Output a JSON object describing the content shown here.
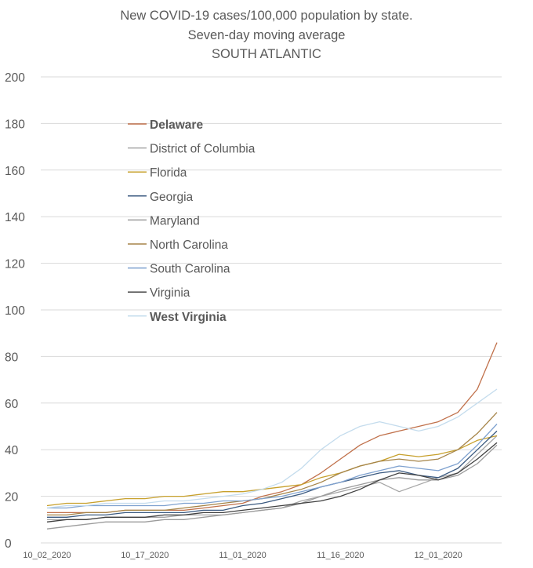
{
  "title_lines": [
    "New COVID-19 cases/100,000 population by state.",
    "Seven-day moving average",
    "SOUTH ATLANTIC"
  ],
  "chart_data": {
    "type": "line",
    "title": "New COVID-19 cases/100,000 population by state. Seven-day moving average SOUTH ATLANTIC",
    "xlabel": "",
    "ylabel": "",
    "ylim": [
      0,
      200
    ],
    "yticks": [
      0,
      20,
      40,
      60,
      80,
      100,
      120,
      140,
      160,
      180,
      200
    ],
    "x_tick_labels": [
      "10_02_2020",
      "10_17_2020",
      "11_01_2020",
      "11_16_2020",
      "12_01_2020"
    ],
    "x_tick_index": [
      0,
      15,
      30,
      45,
      60
    ],
    "grid": true,
    "legend_position": "upper-left-inside",
    "x": [
      "10_02",
      "10_05",
      "10_08",
      "10_11",
      "10_14",
      "10_17",
      "10_20",
      "10_23",
      "10_26",
      "10_29",
      "11_01",
      "11_04",
      "11_07",
      "11_10",
      "11_13",
      "11_16",
      "11_19",
      "11_22",
      "11_25",
      "11_28",
      "12_01",
      "12_04",
      "12_07",
      "12_10"
    ],
    "series": [
      {
        "name": "Delaware",
        "bold": true,
        "color": "#c0704a",
        "values": [
          13,
          13,
          13,
          13,
          14,
          14,
          14,
          14,
          15,
          16,
          17,
          20,
          22,
          25,
          30,
          36,
          42,
          46,
          48,
          50,
          52,
          56,
          66,
          86
        ]
      },
      {
        "name": "District of Columbia",
        "bold": false,
        "color": "#a6a6a6",
        "values": [
          10,
          10,
          10,
          11,
          11,
          11,
          11,
          12,
          12,
          12,
          13,
          14,
          15,
          18,
          20,
          22,
          24,
          26,
          22,
          25,
          28,
          30,
          38,
          46
        ]
      },
      {
        "name": "Florida",
        "bold": false,
        "color": "#c7a02c",
        "values": [
          16,
          17,
          17,
          18,
          19,
          19,
          20,
          20,
          21,
          22,
          22,
          23,
          24,
          25,
          28,
          30,
          33,
          35,
          38,
          37,
          38,
          40,
          44,
          46
        ]
      },
      {
        "name": "Georgia",
        "bold": false,
        "color": "#3b5a80",
        "values": [
          11,
          11,
          12,
          12,
          13,
          13,
          13,
          13,
          14,
          14,
          16,
          17,
          19,
          21,
          24,
          26,
          28,
          30,
          31,
          29,
          28,
          32,
          40,
          48
        ]
      },
      {
        "name": "Maryland",
        "bold": false,
        "color": "#9b9b9b",
        "values": [
          6,
          7,
          8,
          9,
          9,
          9,
          10,
          10,
          11,
          12,
          13,
          14,
          15,
          17,
          20,
          23,
          25,
          27,
          28,
          27,
          27,
          29,
          34,
          42
        ]
      },
      {
        "name": "North Carolina",
        "bold": false,
        "color": "#a58448",
        "values": [
          12,
          12,
          13,
          13,
          14,
          14,
          14,
          15,
          16,
          17,
          18,
          19,
          21,
          23,
          26,
          30,
          33,
          35,
          36,
          35,
          36,
          40,
          47,
          56
        ]
      },
      {
        "name": "South Carolina",
        "bold": false,
        "color": "#7ea1cf",
        "values": [
          15,
          15,
          16,
          16,
          16,
          16,
          16,
          17,
          17,
          18,
          18,
          19,
          20,
          22,
          24,
          26,
          29,
          31,
          33,
          32,
          31,
          34,
          42,
          51
        ]
      },
      {
        "name": "Virginia",
        "bold": false,
        "color": "#404040",
        "values": [
          9,
          10,
          10,
          11,
          11,
          11,
          12,
          12,
          13,
          13,
          14,
          15,
          16,
          17,
          18,
          20,
          23,
          27,
          30,
          29,
          27,
          30,
          36,
          43
        ]
      },
      {
        "name": "West Virginia",
        "bold": true,
        "color": "#c4dced",
        "values": [
          15,
          16,
          16,
          17,
          17,
          17,
          18,
          18,
          19,
          20,
          21,
          23,
          26,
          32,
          40,
          46,
          50,
          52,
          50,
          48,
          50,
          54,
          60,
          66
        ]
      }
    ]
  }
}
